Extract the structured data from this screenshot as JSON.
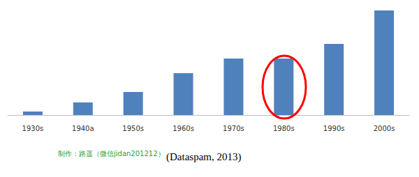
{
  "chart_data": {
    "type": "bar",
    "categories": [
      "1930s",
      "1940a",
      "1950s",
      "1960s",
      "1970s",
      "1980s",
      "1990s",
      "2000s"
    ],
    "values": [
      5,
      18,
      33,
      60,
      81,
      81,
      102,
      150
    ],
    "color": "#4f81bd",
    "ylim": [
      0,
      150
    ],
    "grid": false,
    "tick_labels": "x",
    "annotations": [
      "制作：路遥（微信jidan201212）",
      "(Dataspam, 2013)"
    ]
  }
}
